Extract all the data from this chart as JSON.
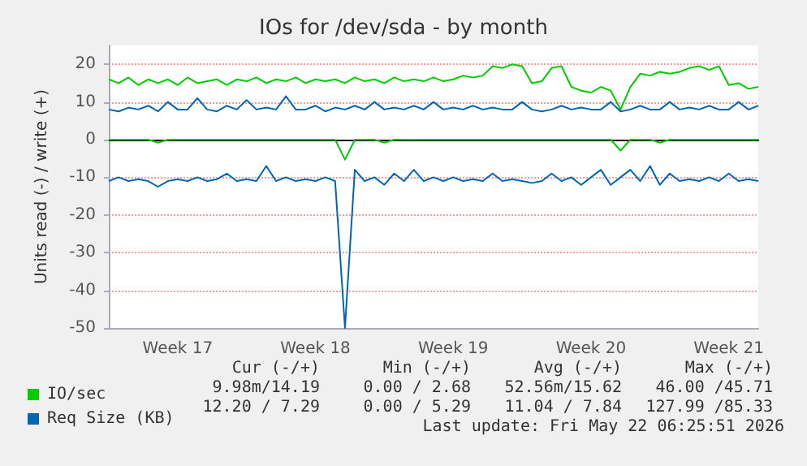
{
  "chart_data": {
    "type": "line",
    "title": "IOs for /dev/sda - by month",
    "ylabel": "Units read (-) / write (+)",
    "categories": [
      null,
      null,
      null,
      null,
      null,
      null,
      null,
      "Week 17",
      null,
      null,
      null,
      null,
      null,
      null,
      null,
      null,
      null,
      null,
      null,
      null,
      null,
      "Week 18",
      null,
      null,
      null,
      null,
      null,
      null,
      null,
      null,
      null,
      null,
      null,
      null,
      null,
      "Week 19",
      null,
      null,
      null,
      null,
      null,
      null,
      null,
      null,
      null,
      null,
      null,
      null,
      null,
      "Week 20",
      null,
      null,
      null,
      null,
      null,
      null,
      null,
      null,
      null,
      null,
      null,
      null,
      null,
      "Week 21",
      null,
      null,
      null
    ],
    "series": [
      {
        "name": "IO/sec",
        "color": "#00cc00",
        "values": [
          16,
          15,
          16.5,
          14.5,
          16,
          15,
          16,
          14.5,
          16.5,
          15,
          15.5,
          16,
          14.5,
          16,
          15.5,
          16.5,
          15,
          16,
          15.5,
          16.5,
          15,
          16,
          15.5,
          16,
          15,
          16.5,
          15.5,
          16,
          15,
          16.5,
          15.5,
          16,
          15.5,
          16.5,
          15.5,
          16,
          17,
          16.5,
          17,
          19.5,
          19,
          20,
          19.5,
          15,
          15.5,
          19,
          19.5,
          14,
          13,
          12.5,
          14,
          13,
          8,
          14,
          17.5,
          17,
          18,
          17.5,
          18,
          19,
          19.5,
          18.5,
          19.5,
          14.5,
          15,
          13.5,
          14
        ]
      },
      {
        "color": "#00cc00",
        "values": [
          0,
          0,
          0,
          0,
          0,
          -0.8,
          0,
          0,
          0,
          0,
          0,
          0,
          0,
          0,
          0,
          0,
          0,
          0,
          0,
          0,
          0,
          0,
          0,
          0,
          -5.3,
          0,
          0,
          0,
          -0.8,
          0,
          0,
          0,
          0,
          0,
          0,
          0,
          0,
          0,
          0,
          0,
          0,
          0,
          0,
          0,
          0,
          0,
          0,
          0,
          0,
          0,
          0,
          0,
          -2.9,
          0,
          0,
          0,
          -0.8,
          0,
          0,
          0,
          0,
          0,
          0,
          0,
          0,
          0,
          0
        ]
      },
      {
        "name": "Req Size (KB)",
        "color": "#0066b3",
        "values": [
          8,
          7.5,
          8.5,
          8,
          9,
          7.5,
          10,
          8,
          8,
          11,
          8,
          7.5,
          9,
          8,
          10.5,
          8,
          8.5,
          8,
          11.5,
          8,
          8,
          9,
          7.5,
          8.5,
          8,
          9,
          8,
          10,
          8,
          8.5,
          8,
          9,
          8,
          10,
          8,
          8.5,
          8,
          9,
          8,
          8.5,
          8,
          8,
          10,
          8,
          7.5,
          8,
          9,
          8,
          8.5,
          8,
          8,
          10,
          7.5,
          8,
          9,
          8,
          8,
          10,
          8,
          8.5,
          8,
          9,
          8,
          8,
          10,
          8,
          9
        ]
      },
      {
        "color": "#0066b3",
        "values": [
          -11,
          -10,
          -11,
          -10.5,
          -11,
          -12.5,
          -11,
          -10.5,
          -11,
          -10,
          -11,
          -10.5,
          -9,
          -11,
          -10.5,
          -11,
          -7,
          -11,
          -10,
          -11,
          -10.5,
          -11,
          -10,
          -11,
          -50,
          -8,
          -11,
          -10,
          -12,
          -9,
          -11,
          -8,
          -11,
          -10,
          -11,
          -10,
          -11,
          -10.5,
          -11,
          -9,
          -11,
          -10.5,
          -11,
          -11.5,
          -11,
          -9,
          -11,
          -10,
          -12,
          -10,
          -8,
          -12,
          -10,
          -8,
          -11,
          -7,
          -12,
          -9,
          -11,
          -10.5,
          -11,
          -10,
          -11,
          -9,
          -11,
          -10.5,
          -11
        ]
      }
    ],
    "ylim": [
      -50,
      25
    ],
    "yticks": [
      -50,
      -40,
      -30,
      -20,
      -10,
      0,
      10,
      20
    ],
    "grid": "y",
    "legend": "bottom left",
    "marker": "none",
    "line_style": "solid",
    "annotations": [
      "Cur (-/+)",
      "Min (-/+)",
      "Avg (-/+)",
      "Max (-/+)",
      "9.98m/14.19",
      "0.00 / 2.68",
      "52.56m/15.62",
      "46.00 /45.71",
      "12.20 / 7.29",
      "0.00 / 5.29",
      "11.04 / 7.84",
      "127.99 /85.33",
      "Last update: Fri May 22 06:25:51 2026"
    ]
  }
}
